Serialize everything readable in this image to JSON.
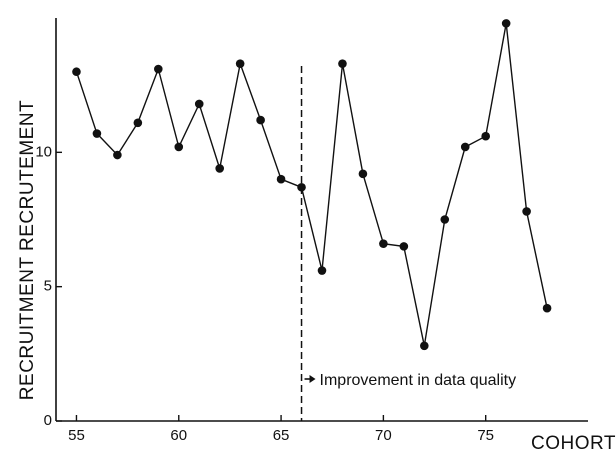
{
  "chart_data": {
    "type": "line",
    "xlabel": "COHORT",
    "ylabel": "RECRUITMENT RECRUTEMENT",
    "xlim": [
      54,
      80
    ],
    "ylim": [
      0,
      15
    ],
    "x_ticks": [
      "55",
      "60",
      "65",
      "70",
      "75"
    ],
    "y_ticks": [
      "0",
      "5",
      "10"
    ],
    "grid": false,
    "series": [
      {
        "x": [
          55,
          56,
          57,
          58,
          59,
          60,
          61,
          62,
          63,
          64,
          65,
          66,
          67,
          68,
          69,
          70,
          71,
          72,
          73,
          74,
          75,
          76,
          77,
          78
        ],
        "y": [
          13.0,
          10.7,
          9.9,
          11.1,
          13.1,
          10.2,
          11.8,
          9.4,
          13.3,
          11.2,
          9.0,
          8.7,
          5.6,
          13.3,
          9.2,
          6.6,
          6.5,
          2.8,
          7.5,
          10.2,
          10.6,
          14.8,
          7.8,
          4.2
        ]
      }
    ],
    "annotations": [
      {
        "text": "Improvement in data quality",
        "x": 66
      }
    ]
  }
}
